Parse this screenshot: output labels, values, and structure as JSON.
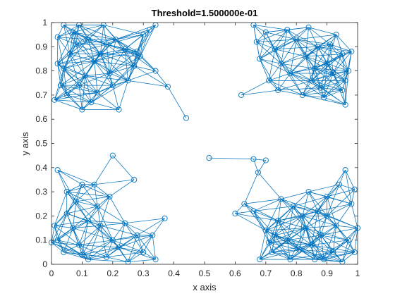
{
  "chart_data": {
    "type": "scatter",
    "title": "Threshold=1.500000e-01",
    "xlabel": "x axis",
    "ylabel": "y axis",
    "xlim": [
      0,
      1
    ],
    "ylim": [
      0,
      1
    ],
    "xticks": [
      "0",
      "0.1",
      "0.2",
      "0.3",
      "0.4",
      "0.5",
      "0.6",
      "0.7",
      "0.8",
      "0.9",
      "1"
    ],
    "yticks": [
      "0",
      "0.1",
      "0.2",
      "0.3",
      "0.4",
      "0.5",
      "0.6",
      "0.7",
      "0.8",
      "0.9",
      "1"
    ],
    "grid": false,
    "threshold": 0.15,
    "marker": "circle",
    "color": "#0072BD",
    "points": [
      [
        0.44,
        0.605
      ],
      [
        0.515,
        0.44
      ],
      [
        0.66,
        0.435
      ],
      [
        0.7,
        0.43
      ],
      [
        0.675,
        0.38
      ],
      [
        0.62,
        0.7
      ],
      [
        0.38,
        0.735
      ],
      [
        0.02,
        0.94
      ],
      [
        0.04,
        0.99
      ],
      [
        0.06,
        0.87
      ],
      [
        0.09,
        0.74
      ],
      [
        0.1,
        0.64
      ],
      [
        0.14,
        0.84
      ],
      [
        0.17,
        0.99
      ],
      [
        0.19,
        0.79
      ],
      [
        0.21,
        0.93
      ],
      [
        0.22,
        0.64
      ],
      [
        0.25,
        0.76
      ],
      [
        0.28,
        0.88
      ],
      [
        0.3,
        0.95
      ],
      [
        0.32,
        0.97
      ],
      [
        0.34,
        0.99
      ],
      [
        0.34,
        0.8
      ],
      [
        0.01,
        0.68
      ],
      [
        0.04,
        0.81
      ],
      [
        0.08,
        0.91
      ],
      [
        0.12,
        0.93
      ],
      [
        0.03,
        0.74
      ],
      [
        0.15,
        0.71
      ],
      [
        0.27,
        0.82
      ],
      [
        0.11,
        0.78
      ],
      [
        0.16,
        0.87
      ],
      [
        0.02,
        0.83
      ],
      [
        0.07,
        0.96
      ],
      [
        0.24,
        0.89
      ],
      [
        0.05,
        0.7
      ],
      [
        0.2,
        0.74
      ],
      [
        0.13,
        0.67
      ],
      [
        0.09,
        0.99
      ],
      [
        0.18,
        0.91
      ],
      [
        0.29,
        0.86
      ],
      [
        0.66,
        0.99
      ],
      [
        0.7,
        0.96
      ],
      [
        0.73,
        0.89
      ],
      [
        0.75,
        0.83
      ],
      [
        0.78,
        0.79
      ],
      [
        0.8,
        0.93
      ],
      [
        0.83,
        0.86
      ],
      [
        0.85,
        0.76
      ],
      [
        0.87,
        0.9
      ],
      [
        0.9,
        0.83
      ],
      [
        0.92,
        0.79
      ],
      [
        0.93,
        0.95
      ],
      [
        0.95,
        0.72
      ],
      [
        0.96,
        0.66
      ],
      [
        0.97,
        0.8
      ],
      [
        0.98,
        0.88
      ],
      [
        0.71,
        0.76
      ],
      [
        0.68,
        0.85
      ],
      [
        0.74,
        0.72
      ],
      [
        0.82,
        0.7
      ],
      [
        0.88,
        0.73
      ],
      [
        0.91,
        0.91
      ],
      [
        0.77,
        0.97
      ],
      [
        0.84,
        0.98
      ],
      [
        0.95,
        0.87
      ],
      [
        0.89,
        0.69
      ],
      [
        0.67,
        0.92
      ],
      [
        0.96,
        0.76
      ],
      [
        0.86,
        0.81
      ],
      [
        0.02,
        0.39
      ],
      [
        0.05,
        0.3
      ],
      [
        0.08,
        0.26
      ],
      [
        0.1,
        0.33
      ],
      [
        0.14,
        0.33
      ],
      [
        0.2,
        0.45
      ],
      [
        0.27,
        0.35
      ],
      [
        0.37,
        0.19
      ],
      [
        0.33,
        0.12
      ],
      [
        0.34,
        0.02
      ],
      [
        0.3,
        0.05
      ],
      [
        0.25,
        0.01
      ],
      [
        0.2,
        0.1
      ],
      [
        0.16,
        0.16
      ],
      [
        0.12,
        0.18
      ],
      [
        0.05,
        0.21
      ],
      [
        0.02,
        0.1
      ],
      [
        0.0,
        0.09
      ],
      [
        0.04,
        0.05
      ],
      [
        0.1,
        0.04
      ],
      [
        0.18,
        0.03
      ],
      [
        0.22,
        0.07
      ],
      [
        0.28,
        0.12
      ],
      [
        0.15,
        0.24
      ],
      [
        0.07,
        0.15
      ],
      [
        0.12,
        0.02
      ],
      [
        0.24,
        0.17
      ],
      [
        0.01,
        0.16
      ],
      [
        0.19,
        0.28
      ],
      [
        0.09,
        0.08
      ],
      [
        0.6,
        0.21
      ],
      [
        0.63,
        0.25
      ],
      [
        0.66,
        0.22
      ],
      [
        0.68,
        0.02
      ],
      [
        0.7,
        0.14
      ],
      [
        0.72,
        0.05
      ],
      [
        0.74,
        0.18
      ],
      [
        0.77,
        0.1
      ],
      [
        0.79,
        0.24
      ],
      [
        0.81,
        0.06
      ],
      [
        0.83,
        0.15
      ],
      [
        0.84,
        0.3
      ],
      [
        0.86,
        0.02
      ],
      [
        0.88,
        0.12
      ],
      [
        0.9,
        0.2
      ],
      [
        0.92,
        0.05
      ],
      [
        0.94,
        0.33
      ],
      [
        0.96,
        0.39
      ],
      [
        0.97,
        0.1
      ],
      [
        0.98,
        0.25
      ],
      [
        0.99,
        0.05
      ],
      [
        1.0,
        0.15
      ],
      [
        0.85,
        0.08
      ],
      [
        0.78,
        0.02
      ],
      [
        0.9,
        0.28
      ],
      [
        0.75,
        0.27
      ],
      [
        0.93,
        0.16
      ],
      [
        0.71,
        0.09
      ],
      [
        0.87,
        0.22
      ],
      [
        0.99,
        0.31
      ],
      [
        0.82,
        0.2
      ],
      [
        0.95,
        0.01
      ],
      [
        0.73,
        0.12
      ],
      [
        0.89,
        0.02
      ]
    ]
  }
}
